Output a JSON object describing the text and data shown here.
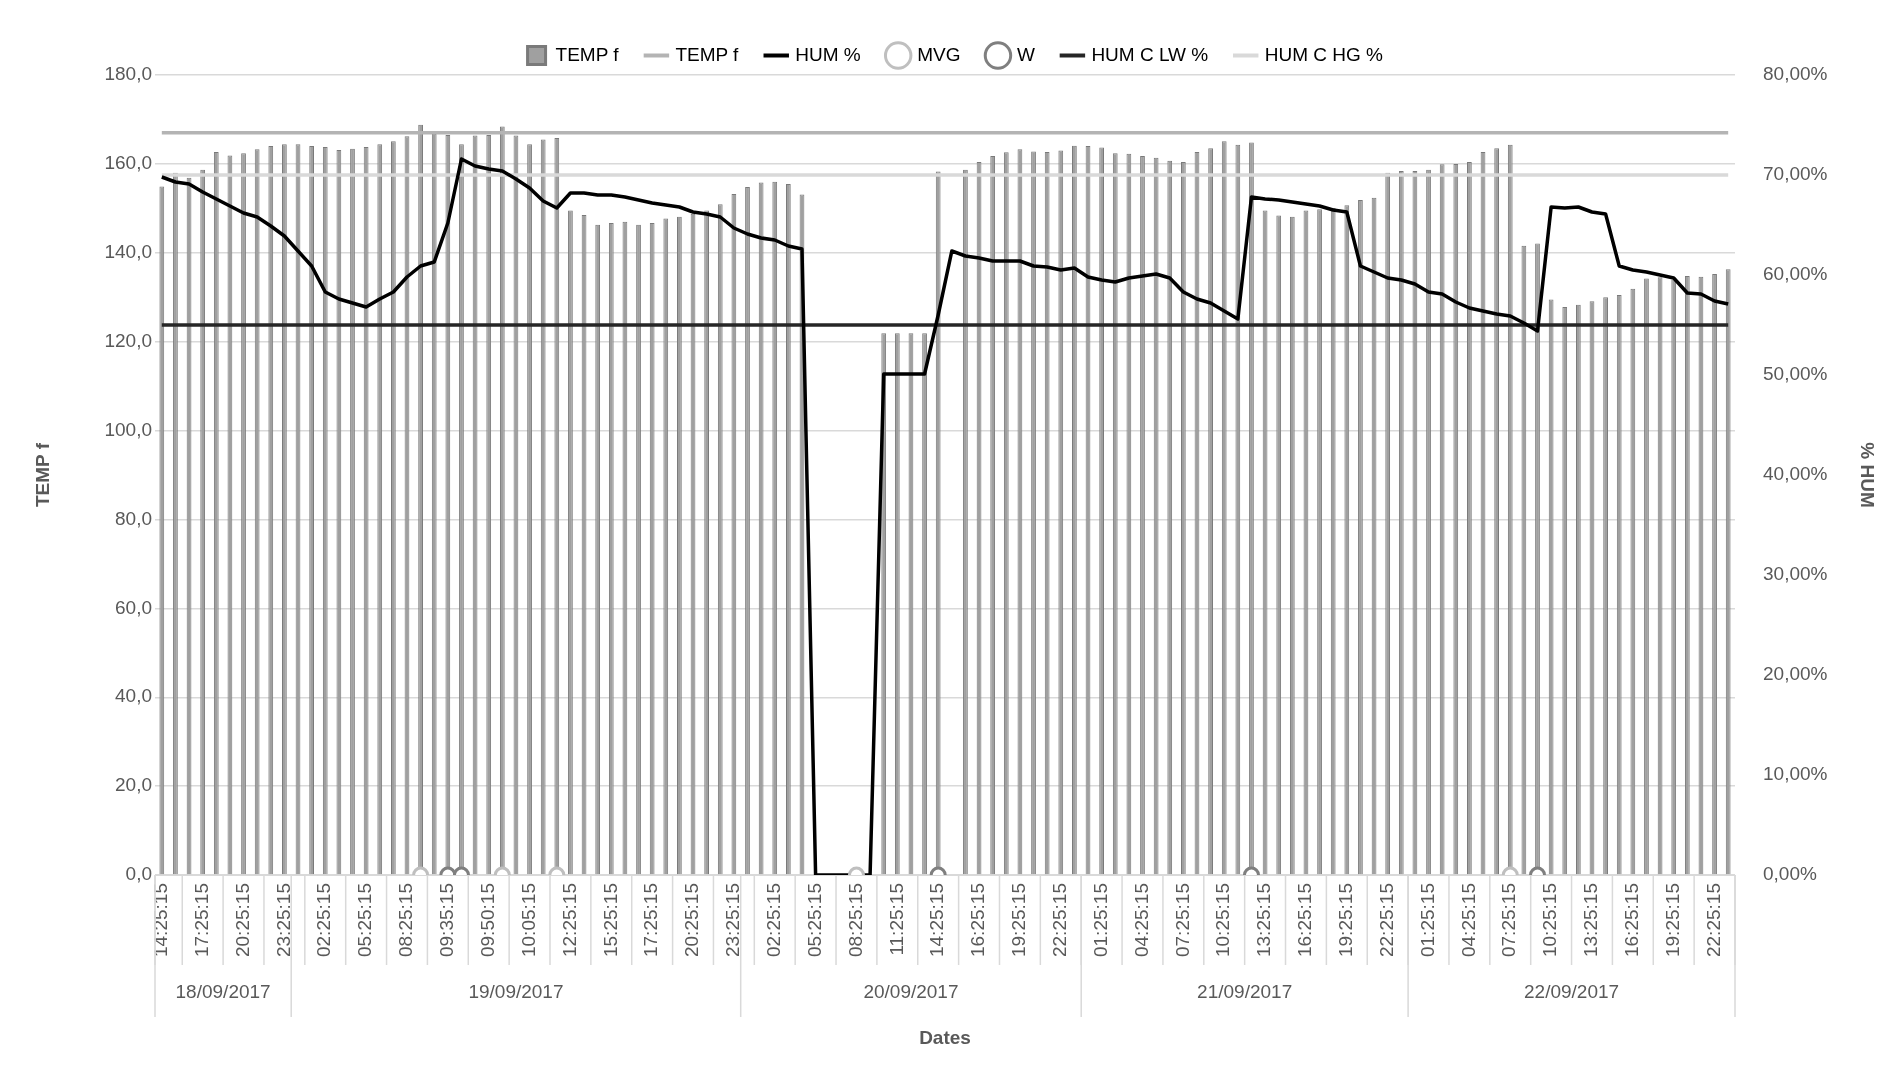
{
  "chart_data": {
    "type": "bar",
    "xlabel": "Dates",
    "ylabel": "TEMP f",
    "y2label": "% HUM",
    "legend": "top",
    "grid": "y",
    "ylim": [
      0,
      180
    ],
    "yticks": [
      {
        "value": 0,
        "label": "0,0"
      },
      {
        "value": 20,
        "label": "20,0"
      },
      {
        "value": 40,
        "label": "40,0"
      },
      {
        "value": 60,
        "label": "60,0"
      },
      {
        "value": 80,
        "label": "80,0"
      },
      {
        "value": 100,
        "label": "100,0"
      },
      {
        "value": 120,
        "label": "120,0"
      },
      {
        "value": 140,
        "label": "140,0"
      },
      {
        "value": 160,
        "label": "160,0"
      },
      {
        "value": 180,
        "label": "180,0"
      }
    ],
    "y2lim": [
      0,
      80
    ],
    "y2ticks": [
      {
        "value": 0,
        "label": "0,00%"
      },
      {
        "value": 10,
        "label": "10,00%"
      },
      {
        "value": 20,
        "label": "20,00%"
      },
      {
        "value": 30,
        "label": "30,00%"
      },
      {
        "value": 40,
        "label": "40,00%"
      },
      {
        "value": 50,
        "label": "50,00%"
      },
      {
        "value": 60,
        "label": "60,00%"
      },
      {
        "value": 70,
        "label": "70,00%"
      },
      {
        "value": 80,
        "label": "80,00%"
      }
    ],
    "annotations": [
      "18/09/2017",
      "19/09/2017",
      "20/09/2017",
      "21/09/2017",
      "22/09/2017"
    ],
    "categories": [
      "14:25:15",
      null,
      null,
      "17:25:15",
      null,
      null,
      "20:25:15",
      null,
      null,
      "23:25:15",
      null,
      null,
      "02:25:15",
      null,
      null,
      "05:25:15",
      null,
      null,
      "08:25:15",
      null,
      null,
      "09:35:15",
      null,
      null,
      "09:50:15",
      null,
      null,
      "10:05:15",
      null,
      null,
      "12:25:15",
      null,
      null,
      "15:25:15",
      null,
      null,
      "17:25:15",
      null,
      null,
      "20:25:15",
      null,
      null,
      "23:25:15",
      null,
      null,
      "02:25:15",
      null,
      null,
      "05:25:15",
      null,
      null,
      "08:25:15",
      null,
      null,
      "11:25:15",
      null,
      null,
      "14:25:15",
      null,
      null,
      "16:25:15",
      null,
      null,
      "19:25:15",
      null,
      null,
      "22:25:15",
      null,
      null,
      "01:25:15",
      null,
      null,
      "04:25:15",
      null,
      null,
      "07:25:15",
      null,
      null,
      "10:25:15",
      null,
      null,
      "13:25:15",
      null,
      null,
      "16:25:15",
      null,
      null,
      "19:25:15",
      null,
      null,
      "22:25:15",
      null,
      null,
      "01:25:15",
      null,
      null,
      "04:25:15",
      null,
      null,
      "07:25:15",
      null,
      null,
      "10:25:15",
      null,
      null,
      "13:25:15",
      null,
      null,
      "16:25:15",
      null,
      null,
      "19:25:15",
      null,
      null,
      "22:25:15",
      null
    ],
    "series": [
      {
        "name": "TEMP f",
        "type": "bar",
        "color": "#a0a0a0",
        "values": [
          154.9,
          158.0,
          156.9,
          158.7,
          162.7,
          161.9,
          162.4,
          163.3,
          164.0,
          164.4,
          164.4,
          164.0,
          163.8,
          163.1,
          163.4,
          163.8,
          164.4,
          165.1,
          166.2,
          168.8,
          166.8,
          166.5,
          164.4,
          166.4,
          166.5,
          168.4,
          166.4,
          164.4,
          165.5,
          165.8,
          149.5,
          148.5,
          146.3,
          146.7,
          147.0,
          146.3,
          146.7,
          147.7,
          148.1,
          148.8,
          149.5,
          150.9,
          153.2,
          154.8,
          155.8,
          156.0,
          155.5,
          153.1,
          null,
          null,
          null,
          null,
          null,
          121.9,
          121.9,
          121.9,
          121.9,
          158.3,
          null,
          158.7,
          160.4,
          161.8,
          162.6,
          163.3,
          162.8,
          162.7,
          163.0,
          164.1,
          164.0,
          163.7,
          162.4,
          162.3,
          161.8,
          161.4,
          160.7,
          160.4,
          162.7,
          163.5,
          165.1,
          164.3,
          164.8,
          149.5,
          148.4,
          148.1,
          149.5,
          149.8,
          150.1,
          150.7,
          151.9,
          152.4,
          158.0,
          158.4,
          158.4,
          158.7,
          159.9,
          160.0,
          160.4,
          162.7,
          163.5,
          164.3,
          141.6,
          142.1,
          129.5,
          127.8,
          128.3,
          129.1,
          130.0,
          130.5,
          131.9,
          134.2,
          134.5,
          134.0,
          134.8,
          134.6,
          135.2,
          136.3
        ]
      },
      {
        "name": "TEMP f",
        "type": "line",
        "color": "#b4b4b4",
        "values": [
          167,
          167,
          167,
          167,
          167,
          167,
          167,
          167,
          167,
          167,
          167,
          167,
          167,
          167,
          167,
          167,
          167,
          167,
          167,
          167,
          167,
          167,
          167,
          167,
          167,
          167,
          167,
          167,
          167,
          167,
          167,
          167,
          167,
          167,
          167,
          167,
          167,
          167,
          167,
          167,
          167,
          167,
          167,
          167,
          167,
          167,
          167,
          167,
          167,
          167,
          167,
          167,
          167,
          167,
          167,
          167,
          167,
          167,
          167,
          167,
          167,
          167,
          167,
          167,
          167,
          167,
          167,
          167,
          167,
          167,
          167,
          167,
          167,
          167,
          167,
          167,
          167,
          167,
          167,
          167,
          167,
          167,
          167,
          167,
          167,
          167,
          167,
          167,
          167,
          167,
          167,
          167,
          167,
          167,
          167,
          167,
          167,
          167,
          167,
          167,
          167,
          167,
          167,
          167,
          167,
          167,
          167,
          167,
          167,
          167,
          167,
          167,
          167,
          167,
          167,
          167
        ]
      },
      {
        "name": "HUM %",
        "type": "line",
        "axis": "y2",
        "color": "#000000",
        "values": [
          69.8,
          69.3,
          69.1,
          68.3,
          67.6,
          66.9,
          66.2,
          65.8,
          64.9,
          63.9,
          62.4,
          60.9,
          58.3,
          57.6,
          57.2,
          56.8,
          57.6,
          58.3,
          59.8,
          60.9,
          61.3,
          65.2,
          71.6,
          70.9,
          70.6,
          70.4,
          69.6,
          68.7,
          67.4,
          66.7,
          68.2,
          68.2,
          68.0,
          68.0,
          67.8,
          67.5,
          67.2,
          67.0,
          66.8,
          66.3,
          66.1,
          65.8,
          64.7,
          64.1,
          63.7,
          63.5,
          62.9,
          62.6,
          0,
          0,
          0,
          0,
          0,
          50.1,
          50.1,
          50.1,
          50.1,
          56.0,
          62.4,
          61.9,
          61.7,
          61.4,
          61.4,
          61.4,
          60.9,
          60.8,
          60.5,
          60.7,
          59.8,
          59.5,
          59.3,
          59.7,
          59.9,
          60.1,
          59.7,
          58.3,
          57.6,
          57.2,
          56.4,
          55.6,
          67.8,
          67.6,
          67.5,
          67.3,
          67.1,
          66.9,
          66.5,
          66.3,
          60.9,
          60.3,
          59.7,
          59.5,
          59.1,
          58.3,
          58.1,
          57.3,
          56.7,
          56.4,
          56.1,
          55.9,
          55.2,
          54.4,
          66.8,
          66.7,
          66.8,
          66.3,
          66.1,
          60.9,
          60.5,
          60.3,
          60.0,
          59.7,
          58.2,
          58.1,
          57.4,
          57.1
        ]
      },
      {
        "name": "MVG",
        "type": "scatter",
        "marker": "circle",
        "color": "#bfbfbf",
        "values": [
          null,
          null,
          null,
          null,
          null,
          null,
          null,
          null,
          null,
          null,
          null,
          null,
          null,
          null,
          null,
          null,
          null,
          null,
          null,
          0,
          null,
          null,
          null,
          null,
          null,
          0,
          null,
          null,
          null,
          0,
          null,
          null,
          null,
          null,
          null,
          null,
          null,
          null,
          null,
          null,
          null,
          null,
          null,
          null,
          null,
          null,
          null,
          null,
          null,
          null,
          null,
          0,
          null,
          null,
          null,
          null,
          null,
          null,
          null,
          null,
          null,
          null,
          null,
          null,
          null,
          null,
          null,
          null,
          null,
          null,
          null,
          null,
          null,
          null,
          null,
          null,
          null,
          null,
          null,
          null,
          null,
          null,
          null,
          null,
          null,
          null,
          null,
          null,
          null,
          null,
          null,
          null,
          null,
          null,
          null,
          null,
          null,
          null,
          null,
          0,
          null,
          null,
          null,
          null,
          null,
          null,
          null,
          null,
          null,
          null,
          null,
          null,
          null,
          null,
          null,
          null
        ]
      },
      {
        "name": "W",
        "type": "scatter",
        "marker": "circle",
        "color": "#7f7f7f",
        "values": [
          null,
          null,
          null,
          null,
          null,
          null,
          null,
          null,
          null,
          null,
          null,
          null,
          null,
          null,
          null,
          null,
          null,
          null,
          null,
          null,
          null,
          0,
          0,
          null,
          null,
          null,
          null,
          null,
          null,
          null,
          null,
          null,
          null,
          null,
          null,
          null,
          null,
          null,
          null,
          null,
          null,
          null,
          null,
          null,
          null,
          null,
          null,
          null,
          null,
          null,
          null,
          null,
          null,
          null,
          null,
          null,
          null,
          0,
          null,
          null,
          null,
          null,
          null,
          null,
          null,
          null,
          null,
          null,
          null,
          null,
          null,
          null,
          null,
          null,
          null,
          null,
          null,
          null,
          null,
          null,
          0,
          null,
          null,
          null,
          null,
          null,
          null,
          null,
          null,
          null,
          null,
          null,
          null,
          null,
          null,
          null,
          null,
          null,
          null,
          null,
          null,
          0,
          null,
          null,
          null,
          null,
          null,
          null,
          null,
          null,
          null,
          null,
          null,
          null,
          null,
          null
        ]
      },
      {
        "name": "HUM C LW %",
        "type": "line",
        "axis": "y2",
        "color": "#262626",
        "values": [
          55,
          55,
          55,
          55,
          55,
          55,
          55,
          55,
          55,
          55,
          55,
          55,
          55,
          55,
          55,
          55,
          55,
          55,
          55,
          55,
          55,
          55,
          55,
          55,
          55,
          55,
          55,
          55,
          55,
          55,
          55,
          55,
          55,
          55,
          55,
          55,
          55,
          55,
          55,
          55,
          55,
          55,
          55,
          55,
          55,
          55,
          55,
          55,
          55,
          55,
          55,
          55,
          55,
          55,
          55,
          55,
          55,
          55,
          55,
          55,
          55,
          55,
          55,
          55,
          55,
          55,
          55,
          55,
          55,
          55,
          55,
          55,
          55,
          55,
          55,
          55,
          55,
          55,
          55,
          55,
          55,
          55,
          55,
          55,
          55,
          55,
          55,
          55,
          55,
          55,
          55,
          55,
          55,
          55,
          55,
          55,
          55,
          55,
          55,
          55,
          55,
          55,
          55,
          55,
          55,
          55,
          55,
          55,
          55,
          55,
          55,
          55,
          55,
          55,
          55,
          55
        ]
      },
      {
        "name": "HUM C HG %",
        "type": "line",
        "axis": "y2",
        "color": "#d9d9d9",
        "values": [
          70,
          70,
          70,
          70,
          70,
          70,
          70,
          70,
          70,
          70,
          70,
          70,
          70,
          70,
          70,
          70,
          70,
          70,
          70,
          70,
          70,
          70,
          70,
          70,
          70,
          70,
          70,
          70,
          70,
          70,
          70,
          70,
          70,
          70,
          70,
          70,
          70,
          70,
          70,
          70,
          70,
          70,
          70,
          70,
          70,
          70,
          70,
          70,
          70,
          70,
          70,
          70,
          70,
          70,
          70,
          70,
          70,
          70,
          70,
          70,
          70,
          70,
          70,
          70,
          70,
          70,
          70,
          70,
          70,
          70,
          70,
          70,
          70,
          70,
          70,
          70,
          70,
          70,
          70,
          70,
          70,
          70,
          70,
          70,
          70,
          70,
          70,
          70,
          70,
          70,
          70,
          70,
          70,
          70,
          70,
          70,
          70,
          70,
          70,
          70,
          70,
          70,
          70,
          70,
          70,
          70,
          70,
          70,
          70,
          70,
          70,
          70,
          70,
          70,
          70,
          70
        ]
      }
    ]
  }
}
